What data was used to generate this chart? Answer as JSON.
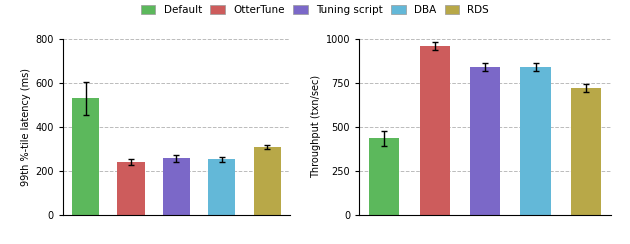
{
  "categories": [
    "Default",
    "OtterTune",
    "Tuning script",
    "DBA",
    "RDS"
  ],
  "colors": [
    "#5cb85c",
    "#cd5c5c",
    "#7b68c8",
    "#63b8d8",
    "#b8a848"
  ],
  "latency_values": [
    530,
    240,
    258,
    253,
    308
  ],
  "latency_errors": [
    75,
    13,
    16,
    12,
    10
  ],
  "throughput_values": [
    435,
    960,
    840,
    840,
    720
  ],
  "throughput_errors": [
    42,
    22,
    22,
    22,
    22
  ],
  "latency_ylabel": "99th %-tile latency (ms)",
  "throughput_ylabel": "Throughput (txn/sec)",
  "latency_ylim": [
    0,
    800
  ],
  "throughput_ylim": [
    0,
    1000
  ],
  "latency_yticks": [
    0,
    200,
    400,
    600,
    800
  ],
  "throughput_yticks": [
    0,
    250,
    500,
    750,
    1000
  ],
  "legend_labels": [
    "Default",
    "OtterTune",
    "Tuning script",
    "DBA",
    "RDS"
  ],
  "grid_color": "#bbbbbb",
  "grid_style": "--",
  "bar_width": 0.6
}
